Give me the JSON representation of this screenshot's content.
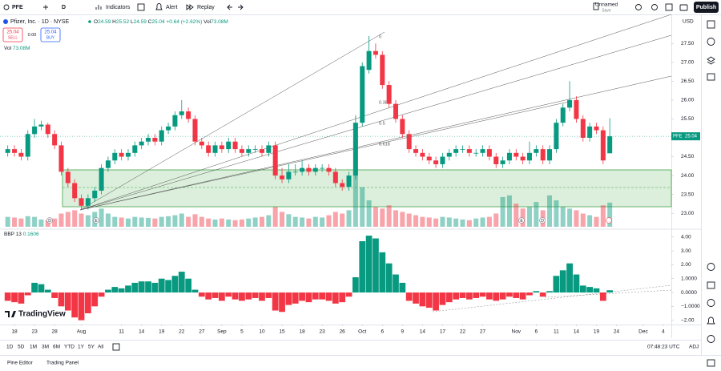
{
  "toolbar": {
    "symbol": "PFE",
    "interval": "D",
    "indicators": "Indicators",
    "alert": "Alert",
    "replay": "Replay",
    "layout_name": "Unnamed",
    "layout_status": "Save",
    "publish": "Publish"
  },
  "legend": {
    "name": "Pfizer, Inc. · 1D · NYSE",
    "o": "O",
    "h": "H",
    "l": "L",
    "c": "C",
    "change": "+0.64 (+2.62%)",
    "vol_label": "Vol",
    "vol_value": "73.08M"
  },
  "trade": {
    "sell_price": 25.04,
    "sell": "SELL",
    "spread": "0.00",
    "buy_price": 25.04,
    "buy": "BUY"
  },
  "currency": "USD",
  "price_tag_symbol": "PFE",
  "events": [
    "D",
    "E",
    "E",
    "D"
  ],
  "chart_data": [
    {
      "type": "candlestick",
      "open": [
        24.6,
        24.7,
        24.6,
        24.5,
        25.1,
        25.3,
        25.35,
        25.1,
        24.8,
        24.1,
        23.8,
        23.4,
        23.2,
        23.4,
        23.6,
        24.2,
        24.4,
        24.6,
        24.5,
        24.6,
        24.8,
        24.9,
        25.0,
        24.9,
        25.2,
        25.3,
        25.6,
        25.7,
        25.5,
        24.9,
        24.8,
        24.6,
        24.8,
        24.7,
        24.9,
        24.7,
        24.6,
        24.7,
        24.7,
        24.6,
        24.8,
        24.0,
        23.9,
        24.1,
        24.1,
        24.2,
        24.1,
        24.2,
        24.2,
        24.1,
        23.8,
        23.7,
        24.0,
        25.4,
        26.8,
        27.3,
        27.2,
        26.4,
        25.9,
        25.5,
        25.1,
        24.7,
        24.6,
        24.5,
        24.4,
        24.3,
        24.5,
        24.6,
        24.7,
        24.7,
        24.6,
        24.6,
        24.7,
        24.5,
        24.3,
        24.4,
        24.6,
        24.5,
        24.4,
        24.6,
        24.7,
        24.4,
        24.7,
        25.4,
        25.8,
        26.0,
        25.5,
        25.0,
        25.3,
        25.2,
        24.59
      ],
      "high": [
        24.8,
        24.8,
        24.7,
        25.2,
        25.5,
        25.45,
        25.4,
        25.2,
        24.9,
        24.2,
        23.9,
        23.5,
        23.5,
        23.7,
        24.3,
        24.5,
        24.7,
        24.7,
        24.7,
        24.9,
        25.0,
        25.1,
        25.1,
        25.3,
        25.4,
        25.7,
        26.0,
        25.8,
        25.6,
        25.0,
        24.9,
        24.9,
        24.9,
        25.0,
        25.0,
        24.8,
        24.8,
        24.8,
        24.8,
        24.9,
        24.9,
        24.2,
        24.3,
        24.3,
        24.4,
        24.3,
        24.3,
        24.3,
        24.3,
        24.2,
        23.9,
        24.1,
        25.6,
        27.0,
        27.7,
        27.5,
        27.3,
        26.5,
        26.0,
        25.6,
        25.2,
        24.8,
        24.7,
        24.6,
        24.5,
        24.6,
        24.7,
        24.8,
        24.8,
        24.8,
        24.7,
        24.8,
        24.8,
        24.6,
        24.5,
        24.7,
        24.7,
        24.6,
        24.9,
        24.8,
        24.8,
        24.8,
        25.5,
        25.9,
        26.5,
        26.1,
        25.6,
        25.4,
        25.4,
        25.3,
        25.52
      ],
      "low": [
        24.5,
        24.5,
        24.4,
        24.4,
        25.0,
        25.2,
        25.0,
        24.7,
        24.0,
        23.7,
        23.3,
        23.1,
        23.1,
        23.3,
        23.5,
        24.1,
        24.3,
        24.4,
        24.4,
        24.5,
        24.7,
        24.8,
        24.8,
        24.8,
        25.1,
        25.2,
        25.5,
        25.4,
        24.8,
        24.7,
        24.5,
        24.5,
        24.6,
        24.6,
        24.6,
        24.5,
        24.5,
        24.6,
        24.5,
        24.5,
        23.9,
        23.8,
        23.8,
        24.0,
        24.0,
        24.0,
        24.0,
        24.1,
        24.0,
        23.7,
        23.6,
        23.6,
        23.9,
        25.3,
        26.7,
        27.1,
        26.3,
        25.8,
        25.4,
        25.0,
        24.6,
        24.5,
        24.4,
        24.3,
        24.2,
        24.2,
        24.4,
        24.5,
        24.6,
        24.5,
        24.5,
        24.5,
        24.4,
        24.2,
        24.2,
        24.3,
        24.4,
        24.3,
        24.3,
        24.5,
        24.3,
        24.3,
        24.6,
        25.3,
        25.7,
        25.4,
        24.9,
        24.9,
        25.1,
        24.3,
        24.59
      ],
      "close": [
        24.7,
        24.6,
        24.5,
        25.1,
        25.3,
        25.35,
        25.1,
        24.8,
        24.1,
        23.8,
        23.4,
        23.2,
        23.4,
        23.6,
        24.2,
        24.4,
        24.6,
        24.5,
        24.6,
        24.8,
        24.9,
        25.0,
        24.9,
        25.2,
        25.3,
        25.6,
        25.7,
        25.5,
        24.9,
        24.8,
        24.6,
        24.8,
        24.7,
        24.9,
        24.7,
        24.6,
        24.7,
        24.7,
        24.6,
        24.8,
        24.0,
        23.9,
        24.1,
        24.1,
        24.2,
        24.1,
        24.2,
        24.2,
        24.1,
        23.8,
        23.7,
        24.0,
        25.4,
        26.9,
        27.3,
        27.2,
        26.4,
        25.9,
        25.5,
        25.1,
        24.7,
        24.6,
        24.5,
        24.4,
        24.3,
        24.5,
        24.6,
        24.7,
        24.7,
        24.6,
        24.6,
        24.7,
        24.5,
        24.3,
        24.4,
        24.6,
        24.5,
        24.4,
        24.6,
        24.7,
        24.4,
        24.7,
        25.4,
        25.8,
        26.0,
        25.5,
        25.0,
        25.3,
        25.2,
        24.4,
        25.04
      ],
      "volume": [
        30,
        28,
        25,
        32,
        30,
        22,
        20,
        25,
        40,
        45,
        50,
        40,
        35,
        45,
        55,
        40,
        30,
        28,
        25,
        30,
        28,
        27,
        25,
        30,
        32,
        35,
        40,
        30,
        38,
        30,
        25,
        22,
        25,
        22,
        20,
        22,
        25,
        28,
        30,
        35,
        60,
        45,
        38,
        30,
        28,
        25,
        30,
        28,
        35,
        45,
        40,
        50,
        165,
        120,
        80,
        60,
        55,
        65,
        50,
        45,
        40,
        35,
        30,
        28,
        25,
        30,
        28,
        25,
        22,
        20,
        25,
        28,
        30,
        40,
        90,
        95,
        70,
        55,
        60,
        75,
        50,
        95,
        80,
        60,
        55,
        50,
        40,
        35,
        30,
        65,
        73.08
      ],
      "up_color": "#089981",
      "down_color": "#f23645",
      "xlim": [
        -1.16,
        99.2
      ],
      "xticks": [
        {
          "value": 1,
          "label": "18"
        },
        {
          "value": 4,
          "label": "23"
        },
        {
          "value": 7,
          "label": "28"
        },
        {
          "value": 11,
          "label": "Aug"
        },
        {
          "value": 17,
          "label": "11"
        },
        {
          "value": 20,
          "label": "14"
        },
        {
          "value": 23,
          "label": "19"
        },
        {
          "value": 26,
          "label": "22"
        },
        {
          "value": 29,
          "label": "27"
        },
        {
          "value": 32,
          "label": "Sep"
        },
        {
          "value": 35,
          "label": "5"
        },
        {
          "value": 38,
          "label": "10"
        },
        {
          "value": 41,
          "label": "15"
        },
        {
          "value": 44,
          "label": "18"
        },
        {
          "value": 47,
          "label": "23"
        },
        {
          "value": 50,
          "label": "26"
        },
        {
          "value": 53,
          "label": "Oct"
        },
        {
          "value": 56,
          "label": "6"
        },
        {
          "value": 59,
          "label": "9"
        },
        {
          "value": 62,
          "label": "14"
        },
        {
          "value": 65,
          "label": "17"
        },
        {
          "value": 68,
          "label": "22"
        },
        {
          "value": 71,
          "label": "27"
        },
        {
          "value": 76,
          "label": "Nov"
        },
        {
          "value": 79,
          "label": "6"
        },
        {
          "value": 82,
          "label": "11"
        },
        {
          "value": 85,
          "label": "14"
        },
        {
          "value": 88,
          "label": "19"
        },
        {
          "value": 91,
          "label": "24"
        },
        {
          "value": 95,
          "label": "Dec"
        },
        {
          "value": 98,
          "label": "4"
        }
      ],
      "ylim": [
        22.6,
        28.27
      ],
      "yticks": [
        {
          "value": 23,
          "label": "23.00"
        },
        {
          "value": 23.5,
          "label": "23.50"
        },
        {
          "value": 24,
          "label": "24.00"
        },
        {
          "value": 24.5,
          "label": "24.50"
        },
        {
          "value": 25,
          "label": "25.00"
        },
        {
          "value": 25.5,
          "label": "25.50"
        },
        {
          "value": 26,
          "label": "26.00"
        },
        {
          "value": 26.5,
          "label": "26.50"
        },
        {
          "value": 27,
          "label": "27.00"
        },
        {
          "value": 27.5,
          "label": "27.50"
        }
      ],
      "grid": false,
      "fib_labels": [
        "0",
        "0.382",
        "0.5",
        "0.618"
      ]
    },
    {
      "type": "bar",
      "title": "BBP 13",
      "values": [
        -0.6,
        -0.7,
        -0.8,
        -0.2,
        0.7,
        0.6,
        0.2,
        -0.4,
        -1.0,
        -1.3,
        -1.8,
        -2.0,
        -1.5,
        -1.0,
        -0.3,
        0.2,
        0.4,
        0.3,
        0.5,
        0.7,
        0.8,
        0.8,
        0.7,
        1.0,
        0.9,
        1.2,
        1.5,
        1.0,
        0.2,
        -0.3,
        -0.5,
        -0.4,
        -0.6,
        -0.3,
        -0.5,
        -0.6,
        -0.5,
        -0.4,
        -0.6,
        -0.4,
        -1.3,
        -1.4,
        -0.9,
        -0.8,
        -0.6,
        -0.7,
        -0.5,
        -0.5,
        -0.6,
        -0.8,
        -0.7,
        -0.3,
        1.1,
        3.7,
        4.1,
        3.9,
        2.9,
        2.1,
        1.3,
        0.7,
        -0.6,
        -0.8,
        -1.0,
        -1.1,
        -1.3,
        -0.9,
        -0.7,
        -0.5,
        -0.4,
        -0.5,
        -0.4,
        -0.3,
        -0.5,
        -0.6,
        -0.5,
        -0.3,
        -0.4,
        -0.5,
        -0.2,
        0.1,
        -0.3,
        0.1,
        1.2,
        1.6,
        2.1,
        1.3,
        0.5,
        0.4,
        0.3,
        -0.6,
        0.1606
      ],
      "positive_color": "#089981",
      "negative_color": "#f23645",
      "ylim": [
        -2.31,
        4.51
      ],
      "yticks": [
        {
          "value": 4,
          "label": "4.00"
        },
        {
          "value": 3,
          "label": "3.00"
        },
        {
          "value": 2,
          "label": "2.00"
        },
        {
          "value": 1,
          "label": "1.0000"
        },
        {
          "value": 0,
          "label": "0.0000"
        },
        {
          "value": -1,
          "label": "−1.0000"
        },
        {
          "value": -2,
          "label": "−2.00"
        }
      ],
      "grid": false
    }
  ],
  "bottom": {
    "ranges": [
      "1D",
      "5D",
      "1M",
      "3M",
      "6M",
      "YTD",
      "1Y",
      "5Y",
      "All"
    ],
    "time": "07:48:23 UTC",
    "adj": "ADJ",
    "tabs": [
      "Pine Editor",
      "Trading Panel"
    ]
  },
  "logo": "TradingView"
}
